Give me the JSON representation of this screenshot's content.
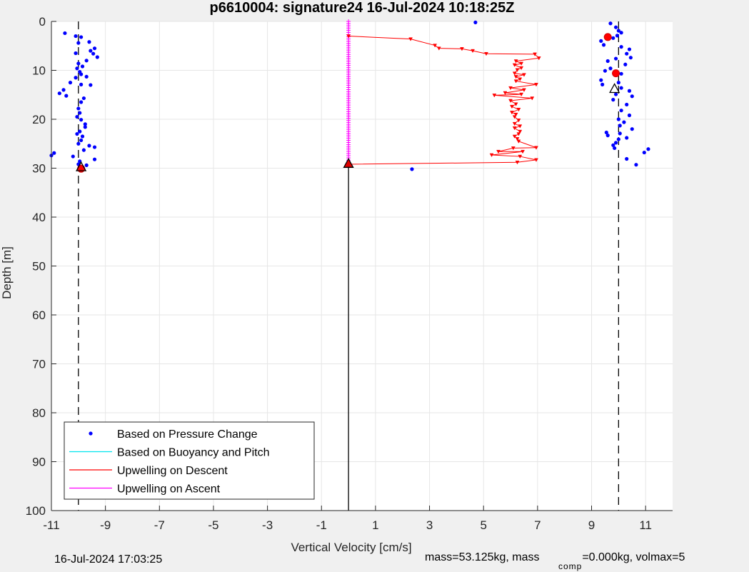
{
  "footer": {
    "datetime": "16-Jul-2024 17:03:25",
    "mass_text": "mass=53.125kg, mass",
    "mass_sub": "comp",
    "comp_text": "=0.000kg, volmax=5"
  },
  "colors": {
    "pressure": "#0000ff",
    "buoyancy": "#00e5ee",
    "descent": "#ff0000",
    "ascent": "#ff00ff",
    "background": "#f0f0f0",
    "axes_bg": "#ffffff",
    "grid": "#e6e6e6"
  },
  "chart_data": {
    "type": "scatter",
    "title": "p6610004: signature24 16-Jul-2024 10:18:25Z",
    "xlabel": "Vertical Velocity [cm/s]",
    "ylabel": "Depth [m]",
    "xlim": [
      -11,
      12
    ],
    "ylim": [
      0,
      100
    ],
    "y_reversed": true,
    "grid": true,
    "xticks": [
      -11,
      -9,
      -7,
      -5,
      -3,
      -1,
      1,
      3,
      5,
      7,
      9,
      11
    ],
    "yticks": [
      0,
      10,
      20,
      30,
      40,
      50,
      60,
      70,
      80,
      90,
      100
    ],
    "reference_lines": [
      {
        "x": -10,
        "style": "dashed",
        "from": 0,
        "to": 100
      },
      {
        "x": 10,
        "style": "dashed",
        "from": 0,
        "to": 100
      },
      {
        "x": 0,
        "style": "solid",
        "from": 29.3,
        "to": 100
      }
    ],
    "legend": {
      "position": "bottom-left",
      "entries": [
        "Based on Pressure Change",
        "Based on Buoyancy and Pitch",
        "Upwelling on Descent",
        "Upwelling on Ascent"
      ]
    },
    "series": [
      {
        "name": "Based on Pressure Change",
        "points_left": [
          [
            -10.5,
            2.4
          ],
          [
            -10.1,
            3
          ],
          [
            -9.9,
            3.2
          ],
          [
            -9.6,
            4.2
          ],
          [
            -9.4,
            5.5
          ],
          [
            -10,
            4.4
          ],
          [
            -9.55,
            6
          ],
          [
            -9.45,
            6.6
          ],
          [
            -10.1,
            6.5
          ],
          [
            -9.3,
            7.3
          ],
          [
            -9.7,
            8
          ],
          [
            -10,
            8.6
          ],
          [
            -9.85,
            9.2
          ],
          [
            -10.05,
            9.6
          ],
          [
            -9.95,
            10.3
          ],
          [
            -9.9,
            10.8
          ],
          [
            -10.1,
            11.5
          ],
          [
            -9.7,
            11.3
          ],
          [
            -10.3,
            12.5
          ],
          [
            -9.55,
            13
          ],
          [
            -9.9,
            12.9
          ],
          [
            -10.55,
            14
          ],
          [
            -10.7,
            14.7
          ],
          [
            -10.45,
            15.2
          ],
          [
            -9.8,
            15.7
          ],
          [
            -9.9,
            16.5
          ],
          [
            -10,
            17.8
          ],
          [
            -9.95,
            18.7
          ],
          [
            -10.05,
            19.5
          ],
          [
            -9.9,
            20.1
          ],
          [
            -9.75,
            21
          ],
          [
            -9.75,
            21.6
          ],
          [
            -9.95,
            22.5
          ],
          [
            -10.05,
            23
          ],
          [
            -9.85,
            23.5
          ],
          [
            -9.9,
            24.3
          ],
          [
            -10,
            25
          ],
          [
            -9.6,
            25.4
          ],
          [
            -9.4,
            25.7
          ],
          [
            -9.8,
            26.3
          ],
          [
            -10.9,
            26.9
          ],
          [
            -11,
            27.4
          ],
          [
            -10.2,
            27.6
          ],
          [
            -9.4,
            28.2
          ],
          [
            -9.95,
            28.6
          ],
          [
            -10,
            29.2
          ],
          [
            -9.7,
            29.4
          ],
          [
            -9.9,
            30.3
          ]
        ],
        "points_center": [
          [
            4.7,
            0.2
          ],
          [
            2.35,
            30.2
          ]
        ],
        "points_right": [
          [
            9.7,
            0.4
          ],
          [
            9.9,
            1.2
          ],
          [
            10,
            1.9
          ],
          [
            10.1,
            2.3
          ],
          [
            9.95,
            2.9
          ],
          [
            9.8,
            3.4
          ],
          [
            9.35,
            4
          ],
          [
            9.45,
            4.8
          ],
          [
            10.1,
            5.2
          ],
          [
            10.4,
            5.7
          ],
          [
            10.3,
            6.6
          ],
          [
            10.45,
            7.4
          ],
          [
            9.9,
            7.6
          ],
          [
            9.6,
            8.1
          ],
          [
            10.25,
            8.8
          ],
          [
            9.7,
            9.6
          ],
          [
            9.5,
            10.1
          ],
          [
            10.1,
            10.7
          ],
          [
            9.35,
            12
          ],
          [
            10,
            12.5
          ],
          [
            9.4,
            12.9
          ],
          [
            10.1,
            13.6
          ],
          [
            10.4,
            14.2
          ],
          [
            9.9,
            14.9
          ],
          [
            10.5,
            15.3
          ],
          [
            9.8,
            16
          ],
          [
            10.3,
            17
          ],
          [
            10.1,
            18.2
          ],
          [
            10.4,
            19.2
          ],
          [
            10,
            20
          ],
          [
            10.2,
            20.6
          ],
          [
            10.05,
            21.3
          ],
          [
            10.5,
            22
          ],
          [
            10.05,
            22.9
          ],
          [
            9.55,
            22.7
          ],
          [
            9.6,
            23.3
          ],
          [
            10,
            24.1
          ],
          [
            10.3,
            23.8
          ],
          [
            9.9,
            24.8
          ],
          [
            9.8,
            25.3
          ],
          [
            9.85,
            25.9
          ],
          [
            11.1,
            26.1
          ],
          [
            10.95,
            26.8
          ],
          [
            10.3,
            28.1
          ],
          [
            10.65,
            29.3
          ]
        ]
      },
      {
        "name": "Upwelling on Descent",
        "points": [
          [
            0,
            3
          ],
          [
            2.3,
            3.6
          ],
          [
            3.2,
            4.9
          ],
          [
            3.35,
            5.5
          ],
          [
            4.2,
            5.6
          ],
          [
            4.6,
            6
          ],
          [
            5.1,
            6.6
          ],
          [
            6.9,
            6.7
          ],
          [
            7.05,
            7.5
          ],
          [
            6.2,
            8.1
          ],
          [
            6.4,
            8.6
          ],
          [
            6.15,
            8.9
          ],
          [
            6.4,
            9.5
          ],
          [
            6.25,
            9.9
          ],
          [
            6.15,
            10.6
          ],
          [
            6.5,
            10.9
          ],
          [
            6.2,
            11.3
          ],
          [
            6.35,
            11.8
          ],
          [
            6.2,
            12.2
          ],
          [
            6.95,
            12.9
          ],
          [
            6,
            13.6
          ],
          [
            6.5,
            14
          ],
          [
            5.8,
            14.6
          ],
          [
            6.4,
            14.9
          ],
          [
            5.4,
            15.1
          ],
          [
            6.8,
            15.7
          ],
          [
            6,
            16.2
          ],
          [
            6.2,
            16.9
          ],
          [
            6.05,
            17.4
          ],
          [
            6.3,
            18
          ],
          [
            6.05,
            18.6
          ],
          [
            6.2,
            19
          ],
          [
            6.15,
            19.5
          ],
          [
            6.3,
            20.2
          ],
          [
            6.15,
            20.9
          ],
          [
            6.35,
            21.4
          ],
          [
            6.15,
            21.8
          ],
          [
            6.35,
            22.5
          ],
          [
            6.3,
            23
          ],
          [
            6.15,
            23.5
          ],
          [
            6.25,
            24
          ],
          [
            6.3,
            24.5
          ],
          [
            6.95,
            25.8
          ],
          [
            6.1,
            25.9
          ],
          [
            5.55,
            26.6
          ],
          [
            6.45,
            26.6
          ],
          [
            5.3,
            27.3
          ],
          [
            6.35,
            27.6
          ],
          [
            6.95,
            28.3
          ],
          [
            6.25,
            28.8
          ],
          [
            0,
            29.2
          ]
        ],
        "marker_every": [
          1,
          1,
          1,
          1,
          1,
          1,
          1,
          1,
          1,
          1,
          1,
          1,
          1,
          1,
          1,
          1,
          1,
          1,
          1,
          1,
          1,
          1,
          1,
          1,
          1,
          1,
          1,
          1,
          1,
          1,
          1,
          1,
          1,
          1,
          1,
          1,
          1,
          1,
          1,
          1,
          1,
          1,
          1,
          1,
          1,
          1,
          1,
          1,
          1,
          1,
          0
        ]
      },
      {
        "name": "Upwelling on Ascent",
        "x": 0,
        "from": 0,
        "to": 28.5,
        "step": 0.45
      }
    ],
    "special_markers": [
      {
        "type": "red-circle",
        "x": -9.9,
        "y": 30.1
      },
      {
        "type": "black-triangle",
        "x": -9.9,
        "y": 29.8
      },
      {
        "type": "red-circle",
        "x": 9.6,
        "y": 3.2
      },
      {
        "type": "red-circle",
        "x": 9.9,
        "y": 10.6
      },
      {
        "type": "white-triangle",
        "x": 9.85,
        "y": 13.8
      },
      {
        "type": "red-triangle",
        "x": 0,
        "y": 29.1
      }
    ]
  }
}
